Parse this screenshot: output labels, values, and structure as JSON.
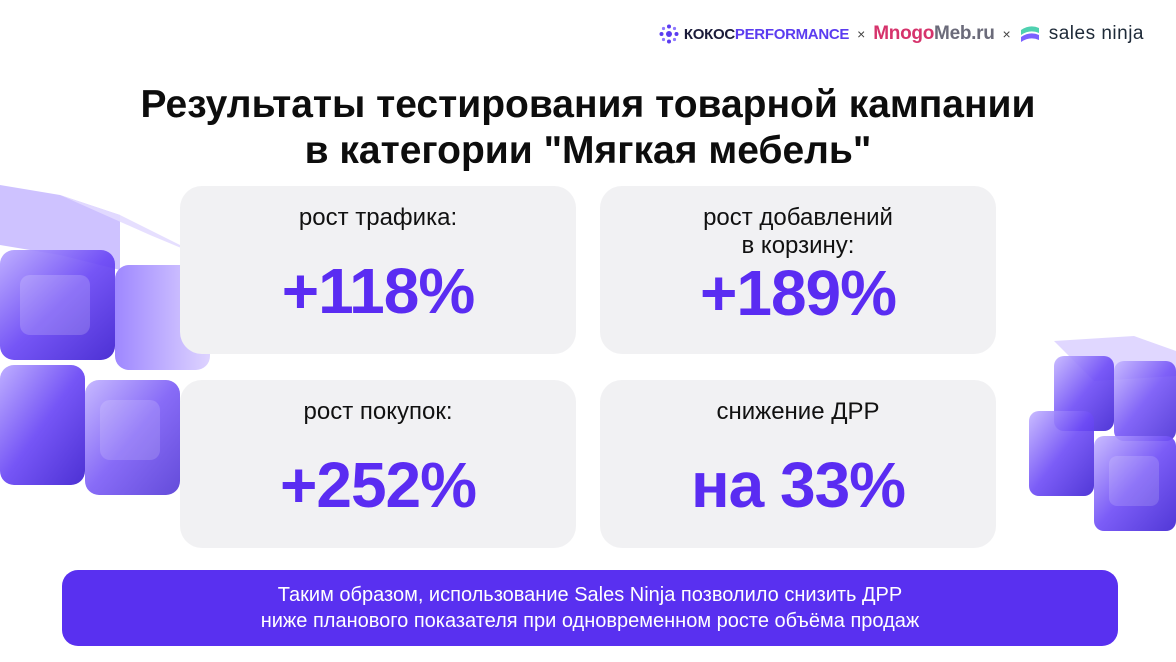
{
  "logos": {
    "kokos_part1": "КОКОС",
    "kokos_part2": "PERFORMANCE",
    "separator": "×",
    "mnogo_part1": "Mnogo",
    "mnogo_part2": "Meb.ru",
    "ninja": "sales ninja"
  },
  "title": {
    "line1": "Результаты тестирования товарной кампании",
    "line2": "в категории \"Мягкая мебель\""
  },
  "metrics": [
    {
      "label_line1": "рост трафика:",
      "label_line2": "",
      "value": "+118%"
    },
    {
      "label_line1": "рост добавлений",
      "label_line2": "в корзину:",
      "value": "+189%"
    },
    {
      "label_line1": "рост покупок:",
      "label_line2": "",
      "value": "+252%"
    },
    {
      "label_line1": "снижение ДРР",
      "label_line2": "",
      "value": "на 33%"
    }
  ],
  "banner": {
    "line1": "Таким образом, использование Sales Ninja позволило снизить ДРР",
    "line2": "ниже планового показателя при одновременном росте объёма продаж"
  },
  "colors": {
    "accent": "#5a2cf2",
    "banner_bg": "#5930f0",
    "card_bg": "#f1f1f3"
  }
}
